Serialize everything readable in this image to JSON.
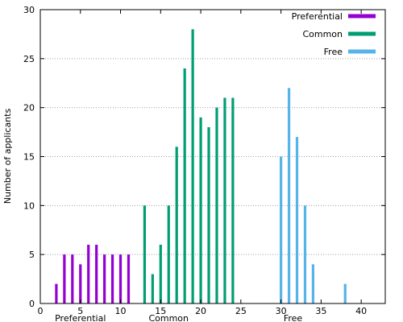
{
  "chart_data": {
    "type": "bar",
    "ylabel": "Number of applicants",
    "xlim": [
      0,
      43
    ],
    "ylim": [
      0,
      30
    ],
    "x_ticks": [
      0,
      5,
      10,
      15,
      20,
      25,
      30,
      35,
      40
    ],
    "y_ticks": [
      0,
      5,
      10,
      15,
      20,
      25,
      30
    ],
    "grid": "horizontal dotted",
    "legend_position": "top-right",
    "group_labels": [
      {
        "text": "Preferential",
        "x": 5
      },
      {
        "text": "Common",
        "x": 16
      },
      {
        "text": "Free",
        "x": 31.5
      }
    ],
    "series": [
      {
        "name": "Preferential",
        "color": "#9400d3",
        "x": [
          2,
          3,
          4,
          5,
          6,
          7,
          8,
          9,
          10,
          11
        ],
        "values": [
          2,
          5,
          5,
          4,
          6,
          6,
          5,
          5,
          5,
          5
        ]
      },
      {
        "name": "Common",
        "color": "#009e73",
        "x": [
          13,
          14,
          15,
          16,
          17,
          18,
          19,
          20,
          21,
          22,
          23,
          24
        ],
        "values": [
          10,
          3,
          6,
          10,
          16,
          24,
          28,
          19,
          18,
          20,
          21,
          21
        ]
      },
      {
        "name": "Free",
        "color": "#56b4e9",
        "x": [
          30,
          31,
          32,
          33,
          34,
          38
        ],
        "values": [
          15,
          22,
          17,
          10,
          4,
          2
        ]
      }
    ]
  }
}
